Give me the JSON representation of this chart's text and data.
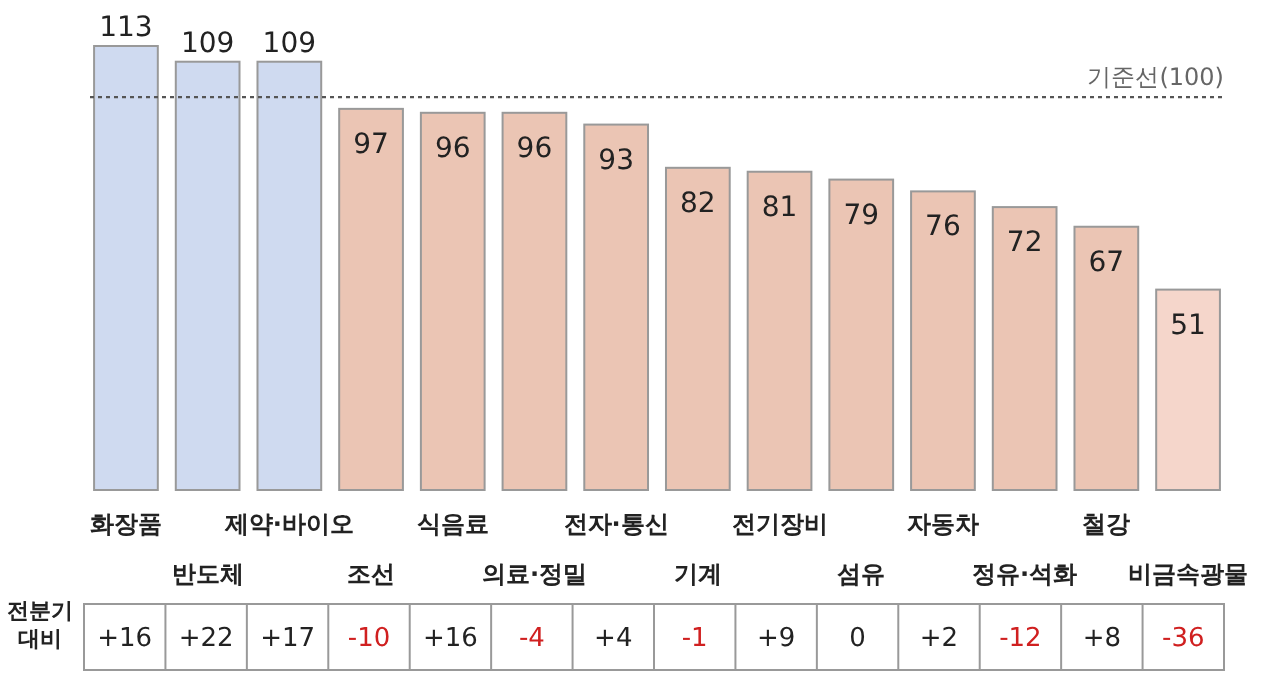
{
  "chart_data": [
    {
      "type": "bar",
      "categories": [
        "화장품",
        "반도체",
        "제약·바이오",
        "조선",
        "식음료",
        "의료·정밀",
        "전자·통신",
        "기계",
        "전기장비",
        "섬유",
        "자동차",
        "정유·석화",
        "철강",
        "비금속광물"
      ],
      "values": [
        113,
        109,
        109,
        97,
        96,
        96,
        93,
        82,
        81,
        79,
        76,
        72,
        67,
        51
      ],
      "colors": [
        "#cfdaf0",
        "#cfdaf0",
        "#cfdaf0",
        "#ebc5b4",
        "#ebc5b4",
        "#ebc5b4",
        "#ebc5b4",
        "#ebc5b4",
        "#ebc5b4",
        "#ebc5b4",
        "#ebc5b4",
        "#ebc5b4",
        "#ebc5b4",
        "#f5d6cb"
      ],
      "data_labels": true,
      "ref_lines": [
        {
          "axis": "y",
          "value": 100,
          "label": "기준선(100)",
          "color": "#555555",
          "line_style": "dotted"
        }
      ]
    },
    {
      "type": "other",
      "title": "전분기 대비",
      "values": [
        16,
        22,
        17,
        -10,
        16,
        -4,
        4,
        -1,
        9,
        0,
        2,
        -12,
        8,
        -36
      ],
      "value_labels": [
        "+16",
        "+22",
        "+17",
        "-10",
        "+16",
        "-4",
        "+4",
        "-1",
        "+9",
        "0",
        "+2",
        "-12",
        "+8",
        "-36"
      ],
      "colors": [
        "#222222",
        "#222222",
        "#222222",
        "#d02020",
        "#222222",
        "#d02020",
        "#222222",
        "#d02020",
        "#222222",
        "#222222",
        "#222222",
        "#d02020",
        "#222222",
        "#d02020"
      ]
    }
  ]
}
